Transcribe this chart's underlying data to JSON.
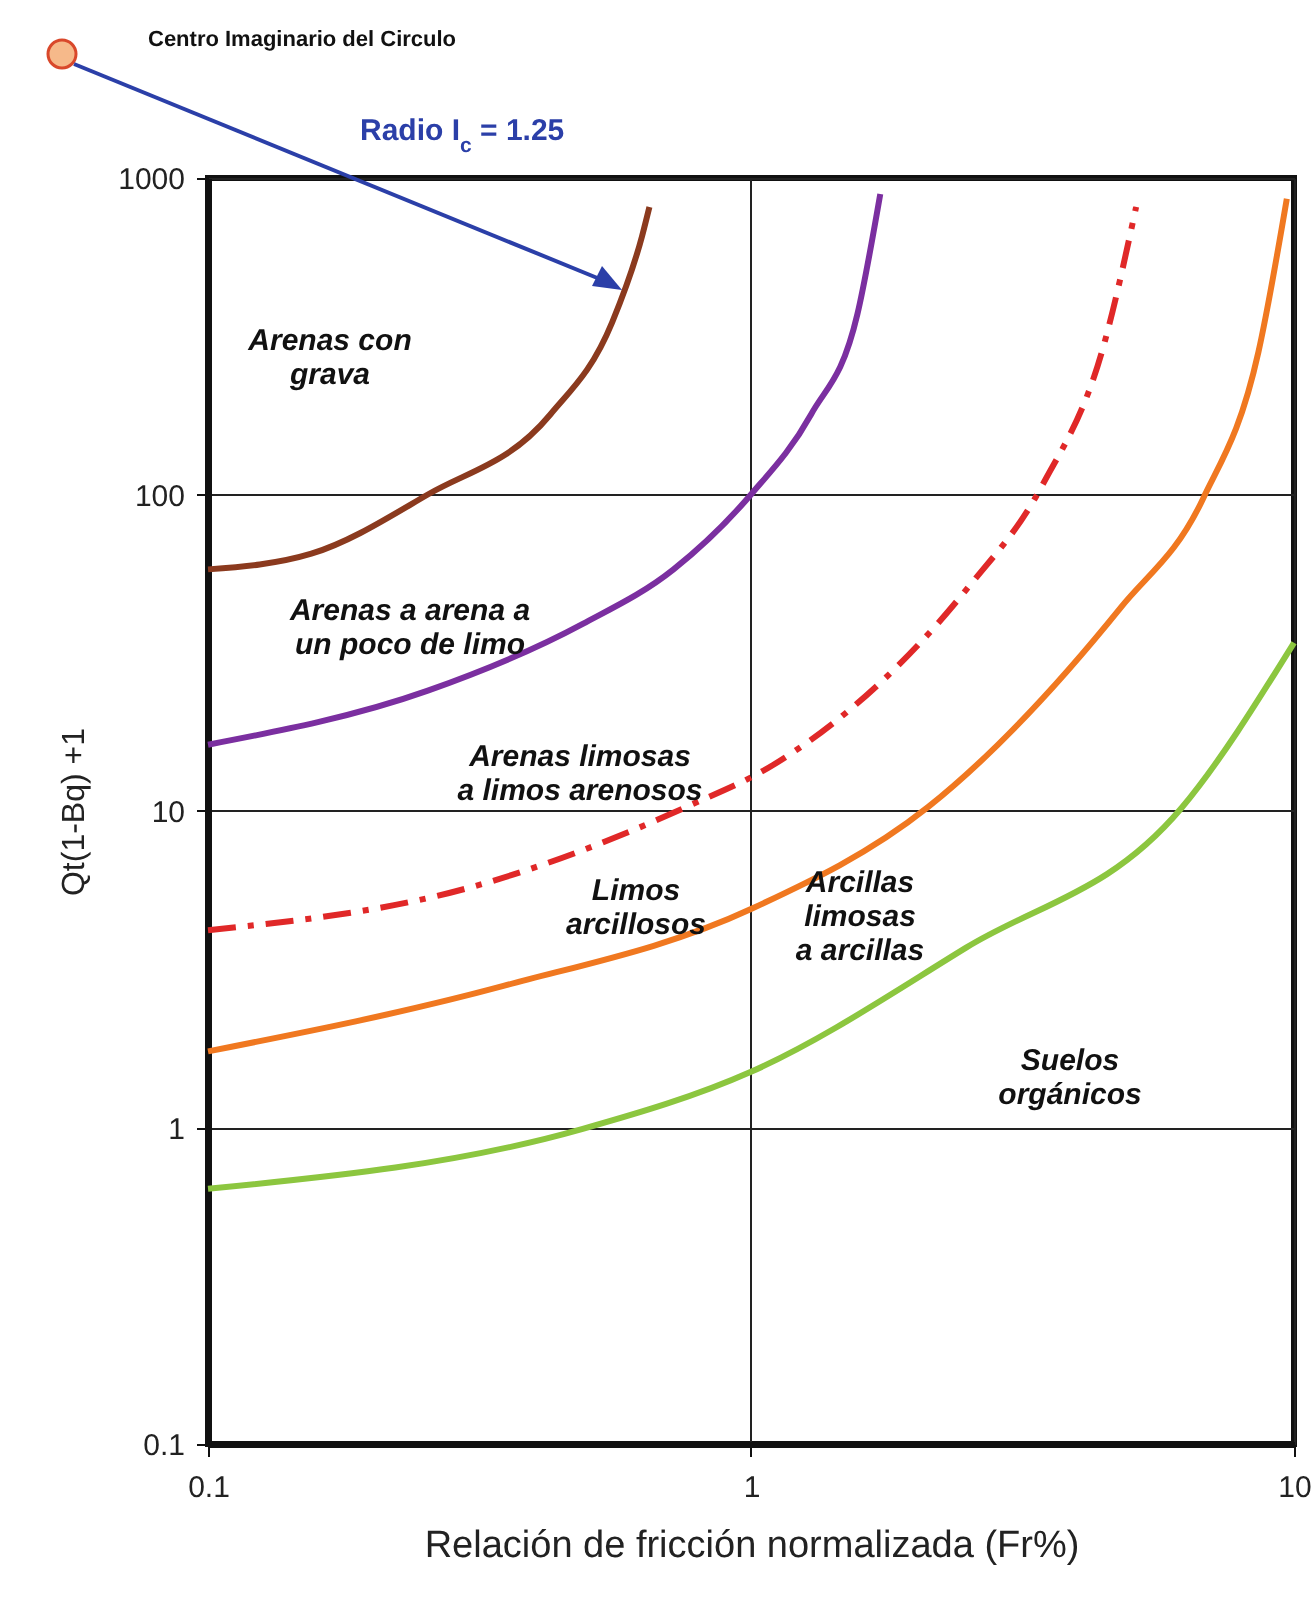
{
  "chart_data": {
    "type": "line",
    "xlabel": "Relación de fricción normalizada (Fr%)",
    "ylabel": "Qt(1-Bq) +1",
    "log": "xy",
    "grid": true,
    "xlim": [
      0.1,
      10
    ],
    "ylim": [
      0.1,
      1000
    ],
    "xticks": [
      0.1,
      1,
      10
    ],
    "yticks": [
      0.1,
      1,
      10,
      100,
      1000
    ],
    "series": [
      {
        "color": "#8b3a1e",
        "line_style": "solid",
        "x": [
          0.1,
          0.155,
          0.254,
          0.427,
          0.555,
          0.63,
          0.65
        ],
        "values": [
          58,
          65,
          100,
          179,
          350,
          655,
          810
        ]
      },
      {
        "color": "#7b2fa0",
        "line_style": "solid",
        "x": [
          0.1,
          0.254,
          0.49,
          0.72,
          1,
          1.29,
          1.57,
          1.73
        ],
        "values": [
          16.2,
          24,
          39,
          58,
          100,
          179,
          371,
          890
        ]
      },
      {
        "color": "#e02828",
        "line_style": "dashed",
        "x": [
          0.1,
          0.3,
          0.77,
          1.1,
          2.49,
          3.44,
          4.47,
          5.12
        ],
        "values": [
          4.2,
          5.7,
          10.4,
          14,
          50,
          107,
          299,
          810
        ]
      },
      {
        "color": "#f07820",
        "line_style": "solid",
        "x": [
          0.1,
          0.35,
          1,
          2.12,
          4.8,
          6.8,
          8.6,
          9.7
        ],
        "values": [
          1.74,
          2.8,
          4.9,
          10.3,
          44,
          97,
          282,
          860
        ]
      },
      {
        "color": "#8cc63f",
        "line_style": "solid",
        "x": [
          0.1,
          0.49,
          1,
          2.49,
          6.2,
          10
        ],
        "values": [
          0.64,
          0.99,
          1.5,
          3.7,
          10.2,
          34
        ]
      }
    ],
    "annotations": [
      "Centro Imaginario del Circulo",
      "Radio I$_{c}$ = 1.25",
      "Arenas con\ngrava",
      "Arenas a arena a\nun poco de limo",
      "Arenas limosas\na limos arenosos",
      "Limos\narcillosos",
      "Arcillas\nlimosas\na arcillas",
      "Suelos\norgánicos"
    ]
  }
}
